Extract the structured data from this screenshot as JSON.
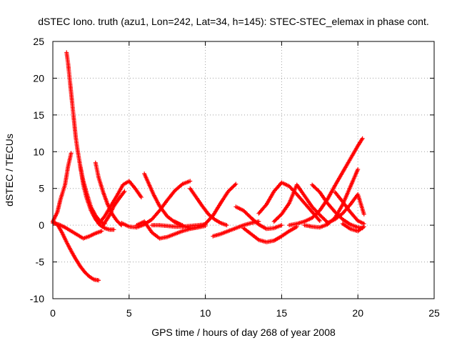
{
  "chart_data": {
    "type": "scatter",
    "title": "dSTEC Iono. truth (azu1, Lon=242, Lat=34, h=145): STEC-STEC_elemax in phase cont.",
    "xlabel": "GPS time / hours of day 268 of year 2008",
    "ylabel": "dSTEC  / TECUs",
    "xlim": [
      0,
      25
    ],
    "ylim": [
      -10,
      25
    ],
    "xticks": [
      0,
      5,
      10,
      15,
      20,
      25
    ],
    "yticks": [
      -10,
      -5,
      0,
      5,
      10,
      15,
      20,
      25
    ],
    "grid": true,
    "marker": "+",
    "color": "#ff0000",
    "series": [
      {
        "x": [
          0.0,
          0.3,
          0.6,
          0.9,
          1.2,
          1.5,
          1.8,
          2.1,
          2.4,
          2.7,
          3.0
        ],
        "y": [
          0.5,
          0.1,
          -1.0,
          -2.3,
          -3.5,
          -4.6,
          -5.6,
          -6.4,
          -7.0,
          -7.4,
          -7.5
        ]
      },
      {
        "x": [
          0.9,
          1.0,
          1.1,
          1.2,
          1.3,
          1.4,
          1.5,
          1.6,
          1.8,
          2.0,
          2.2,
          2.5,
          2.8,
          3.1,
          3.4
        ],
        "y": [
          23.5,
          22.0,
          20.0,
          18.0,
          16.0,
          14.0,
          12.0,
          10.5,
          8.0,
          6.0,
          4.5,
          2.5,
          1.3,
          0.5,
          0.2
        ]
      },
      {
        "x": [
          0.0,
          0.3,
          0.5,
          0.8,
          1.0,
          1.2
        ],
        "y": [
          0.5,
          1.8,
          3.5,
          5.5,
          8.0,
          9.8
        ]
      },
      {
        "x": [
          0.0,
          0.4,
          0.8,
          1.2,
          1.6,
          2.0,
          2.4,
          2.8,
          3.2
        ],
        "y": [
          0.3,
          0.1,
          -0.3,
          -0.8,
          -1.3,
          -1.8,
          -1.5,
          -1.1,
          -0.8
        ]
      },
      {
        "x": [
          1.8,
          2.0,
          2.2,
          2.5,
          2.8,
          3.1,
          3.4,
          3.7,
          4.0
        ],
        "y": [
          8.0,
          5.5,
          3.8,
          2.0,
          0.8,
          0.0,
          -0.4,
          -0.6,
          -0.6
        ]
      },
      {
        "x": [
          2.8,
          3.0,
          3.3,
          3.6,
          3.9,
          4.2,
          4.5
        ],
        "y": [
          8.5,
          6.5,
          4.5,
          2.8,
          1.5,
          0.6,
          0.0
        ]
      },
      {
        "x": [
          3.0,
          3.4,
          3.8,
          4.2,
          4.6,
          5.0,
          5.4,
          5.8
        ],
        "y": [
          0.2,
          1.2,
          2.6,
          4.0,
          5.5,
          6.0,
          5.0,
          3.8
        ]
      },
      {
        "x": [
          3.3,
          3.7,
          4.0,
          4.3,
          4.7
        ],
        "y": [
          0.0,
          1.3,
          2.6,
          3.5,
          4.6
        ]
      },
      {
        "x": [
          4.5,
          5.0,
          5.5,
          6.0,
          6.5,
          7.0,
          7.5,
          8.0,
          8.5,
          9.0
        ],
        "y": [
          0.3,
          -0.2,
          -0.3,
          0.1,
          0.8,
          2.0,
          3.4,
          4.7,
          5.6,
          6.0
        ]
      },
      {
        "x": [
          5.5,
          6.0,
          6.5,
          7.0,
          7.5,
          8.0,
          8.5,
          9.0,
          9.5,
          10.0
        ],
        "y": [
          0.0,
          0.5,
          -1.0,
          -1.8,
          -1.6,
          -1.2,
          -0.8,
          -0.5,
          -0.3,
          -0.1
        ]
      },
      {
        "x": [
          6.0,
          6.3,
          6.6,
          7.0,
          7.5,
          8.0,
          8.5
        ],
        "y": [
          7.0,
          5.6,
          4.2,
          2.6,
          1.2,
          0.4,
          0.0
        ]
      },
      {
        "x": [
          6.5,
          7.0,
          7.5,
          8.0,
          8.5,
          9.0,
          9.5,
          10.0
        ],
        "y": [
          0.0,
          0.0,
          -0.1,
          -0.2,
          -0.2,
          -0.1,
          0.0,
          0.1
        ]
      },
      {
        "x": [
          8.0,
          8.5,
          9.0,
          9.5,
          10.0,
          10.5,
          11.0,
          11.5,
          12.0
        ],
        "y": [
          0.5,
          -0.1,
          -0.4,
          -0.3,
          0.2,
          1.3,
          3.0,
          4.6,
          5.6
        ]
      },
      {
        "x": [
          9.0,
          9.4,
          9.8,
          10.2,
          10.6,
          11.0,
          11.4
        ],
        "y": [
          5.0,
          3.8,
          2.6,
          1.5,
          0.8,
          0.3,
          0.0
        ]
      },
      {
        "x": [
          10.5,
          11.0,
          11.5,
          12.0,
          12.5,
          13.0,
          13.5
        ],
        "y": [
          -1.5,
          -1.2,
          -0.8,
          -0.4,
          0.0,
          0.3,
          0.5
        ]
      },
      {
        "x": [
          12.0,
          12.5,
          13.0,
          13.5,
          14.0,
          14.5,
          15.0
        ],
        "y": [
          2.5,
          2.0,
          1.0,
          0.1,
          -0.5,
          -0.4,
          0.0
        ]
      },
      {
        "x": [
          12.5,
          13.0,
          13.5,
          14.0,
          14.5,
          15.0,
          15.5,
          16.0
        ],
        "y": [
          -0.4,
          -1.2,
          -2.0,
          -2.3,
          -2.1,
          -1.5,
          -0.8,
          -0.2
        ]
      },
      {
        "x": [
          13.5,
          14.0,
          14.5,
          15.0,
          15.5,
          16.0,
          16.5,
          17.0,
          17.5
        ],
        "y": [
          1.6,
          2.8,
          4.6,
          5.8,
          5.3,
          4.2,
          3.0,
          1.8,
          0.6
        ]
      },
      {
        "x": [
          14.5,
          15.0,
          15.5,
          16.0,
          16.5,
          17.0,
          17.5,
          18.0
        ],
        "y": [
          0.5,
          1.5,
          3.0,
          5.5,
          4.0,
          2.5,
          1.4,
          0.4
        ]
      },
      {
        "x": [
          15.5,
          16.0,
          16.5,
          17.0,
          17.5,
          18.0,
          18.5,
          19.0,
          19.5,
          20.0,
          20.3
        ],
        "y": [
          0.0,
          0.2,
          0.5,
          1.0,
          2.0,
          3.5,
          5.4,
          7.2,
          9.0,
          10.8,
          11.8
        ]
      },
      {
        "x": [
          16.5,
          17.0,
          17.5,
          18.0,
          18.5,
          19.0,
          19.5,
          20.0
        ],
        "y": [
          0.0,
          -0.2,
          -0.3,
          0.1,
          1.0,
          2.8,
          5.2,
          7.6
        ]
      },
      {
        "x": [
          17.0,
          17.5,
          18.0,
          18.5,
          19.0,
          19.5,
          20.0,
          20.3
        ],
        "y": [
          5.5,
          4.5,
          3.0,
          1.8,
          0.8,
          0.1,
          -0.3,
          -0.4
        ]
      },
      {
        "x": [
          18.0,
          18.5,
          19.0,
          19.5,
          20.0,
          20.4
        ],
        "y": [
          0.3,
          0.8,
          1.6,
          2.8,
          4.2,
          1.5
        ]
      },
      {
        "x": [
          18.5,
          19.0,
          19.5,
          20.0,
          20.4
        ],
        "y": [
          4.5,
          3.2,
          1.8,
          0.6,
          0.2
        ]
      },
      {
        "x": [
          19.0,
          19.5,
          20.0,
          20.4
        ],
        "y": [
          0.2,
          -0.5,
          -0.8,
          -0.2
        ]
      }
    ]
  }
}
